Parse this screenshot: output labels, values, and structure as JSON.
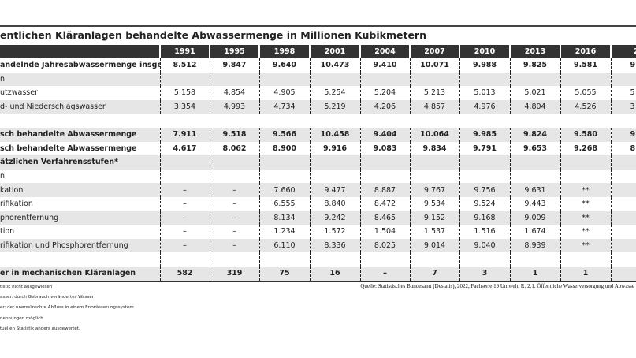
{
  "title": "entlichen Kläranlagen behandelte Abwassermenge in Millionen Kubikmetern",
  "table": {
    "headers": [
      "",
      "1991",
      "1995",
      "1998",
      "2001",
      "2004",
      "2007",
      "2010",
      "2013",
      "2016",
      "2"
    ],
    "rows": [
      {
        "label": "andelnde Jahresabwassermenge insgesamt",
        "bold": true,
        "values": [
          "8.512",
          "9.847",
          "9.640",
          "10.473",
          "9.410",
          "10.071",
          "9.988",
          "9.825",
          "9.581",
          "9"
        ]
      },
      {
        "label": "n",
        "values": [
          "",
          "",
          "",
          "",
          "",
          "",
          "",
          "",
          "",
          ""
        ]
      },
      {
        "label": "utzwasser",
        "values": [
          "5.158",
          "4.854",
          "4.905",
          "5.254",
          "5.204",
          "5.213",
          "5.013",
          "5.021",
          "5.055",
          "5"
        ]
      },
      {
        "label": "d- und Niederschlagswasser",
        "values": [
          "3.354",
          "4.993",
          "4.734",
          "5.219",
          "4.206",
          "4.857",
          "4.976",
          "4.804",
          "4.526",
          "3"
        ]
      },
      {
        "label": "",
        "empty": true,
        "values": [
          "",
          "",
          "",
          "",
          "",
          "",
          "",
          "",
          "",
          ""
        ]
      },
      {
        "label": "sch behandelte Abwassermenge",
        "bold": true,
        "values": [
          "7.911",
          "9.518",
          "9.566",
          "10.458",
          "9.404",
          "10.064",
          "9.985",
          "9.824",
          "9.580",
          "9"
        ]
      },
      {
        "label": "sch behandelte Abwassermenge",
        "bold": true,
        "values": [
          "4.617",
          "8.062",
          "8.900",
          "9.916",
          "9.083",
          "9.834",
          "9.791",
          "9.653",
          "9.268",
          "8"
        ]
      },
      {
        "label": "ätzlichen Verfahrensstufen*",
        "bold": true,
        "values": [
          "",
          "",
          "",
          "",
          "",
          "",
          "",
          "",
          "",
          ""
        ]
      },
      {
        "label": "n",
        "values": [
          "",
          "",
          "",
          "",
          "",
          "",
          "",
          "",
          "",
          ""
        ]
      },
      {
        "label": "kation",
        "values": [
          "–",
          "–",
          "7.660",
          "9.477",
          "8.887",
          "9.767",
          "9.756",
          "9.631",
          "**",
          ""
        ]
      },
      {
        "label": "rifikation",
        "values": [
          "–",
          "–",
          "6.555",
          "8.840",
          "8.472",
          "9.534",
          "9.524",
          "9.443",
          "**",
          ""
        ]
      },
      {
        "label": "phorentfernung",
        "values": [
          "–",
          "–",
          "8.134",
          "9.242",
          "8.465",
          "9.152",
          "9.168",
          "9.009",
          "**",
          ""
        ]
      },
      {
        "label": "tion",
        "values": [
          "–",
          "–",
          "1.234",
          "1.572",
          "1.504",
          "1.537",
          "1.516",
          "1.674",
          "**",
          ""
        ]
      },
      {
        "label": "rifikation und Phosphorentfernung",
        "values": [
          "–",
          "–",
          "6.110",
          "8.336",
          "8.025",
          "9.014",
          "9.040",
          "8.939",
          "**",
          ""
        ]
      },
      {
        "label": "",
        "values": [
          "",
          "",
          "",
          "",
          "",
          "",
          "",
          "",
          "",
          ""
        ]
      },
      {
        "label": "er in mechanischen Kläranlagen",
        "bold": true,
        "values": [
          "582",
          "319",
          "75",
          "16",
          "–",
          "7",
          "3",
          "1",
          "1",
          ""
        ]
      }
    ]
  },
  "footnotes": [
    "tistik nicht ausgewiesen",
    "asser: durch Gebrauch verändertes Wasser",
    "er: der unerwünschte Abfluss in einem Entwässerungssystem",
    "nennungen möglich",
    "tuellen Statistik anders ausgewertet."
  ],
  "source": "Quelle: Statistisches Bundesamt (Destatis), 2022, Fachserie 19 Umwelt, R. 2.1. Öffentliche Wasserversorgung und Abwasse"
}
